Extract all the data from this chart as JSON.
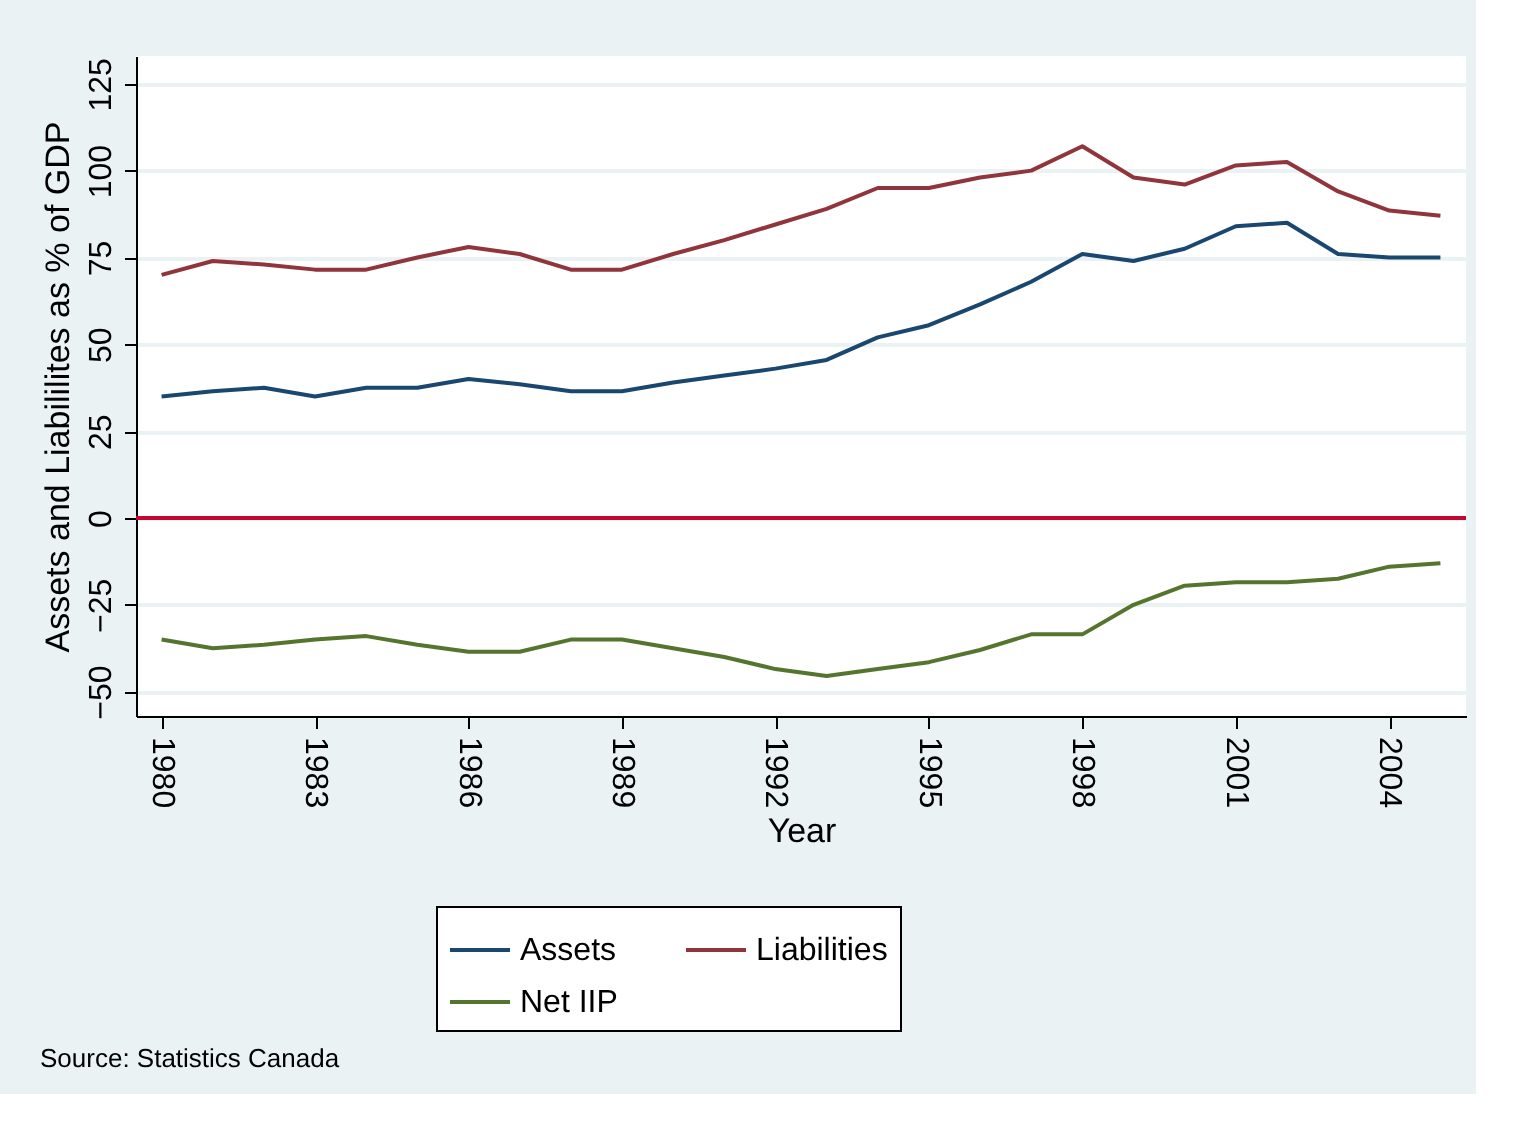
{
  "chart_data": {
    "type": "line",
    "xlabel": "Year",
    "ylabel": "Assets and Liabililites as % of GDP",
    "x": [
      1980,
      1981,
      1982,
      1983,
      1984,
      1985,
      1986,
      1987,
      1988,
      1989,
      1990,
      1991,
      1992,
      1993,
      1994,
      1995,
      1996,
      1997,
      1998,
      1999,
      2000,
      2001,
      2002,
      2003,
      2004,
      2005
    ],
    "series": [
      {
        "name": "Assets",
        "color": "#1a476f",
        "values": [
          35,
          36.5,
          37.5,
          35,
          37.5,
          37.5,
          40,
          38.5,
          36.5,
          36.5,
          39,
          41,
          43,
          45.5,
          52,
          55.5,
          61.5,
          68,
          76,
          74,
          77.5,
          84,
          85,
          76,
          75,
          75
        ]
      },
      {
        "name": "Liabilities",
        "color": "#90353b",
        "values": [
          70,
          74,
          73,
          71.5,
          71.5,
          75,
          78,
          76,
          71.5,
          71.5,
          76,
          80,
          84.5,
          89,
          95,
          95,
          98,
          100,
          107,
          98,
          96,
          101.5,
          102.5,
          94,
          88.5,
          87
        ]
      },
      {
        "name": "Net IIP",
        "color": "#55752f",
        "values": [
          -35,
          -37.5,
          -36.5,
          -35,
          -34,
          -36.5,
          -38.5,
          -38.5,
          -35,
          -35,
          -37.5,
          -40,
          -43.5,
          -45.5,
          -43.5,
          -41.5,
          -38,
          -33.5,
          -33.5,
          -25,
          -19.5,
          -18.5,
          -18.5,
          -17.5,
          -14,
          -13
        ]
      }
    ],
    "xlim": [
      1979.5,
      2005.5
    ],
    "xticks": [
      1980,
      1983,
      1986,
      1989,
      1992,
      1995,
      1998,
      2001,
      2004
    ],
    "ylim": [
      -57,
      133
    ],
    "yticks": [
      -50,
      -25,
      0,
      25,
      50,
      75,
      100,
      125
    ],
    "ref_lines": [
      {
        "axis": "y",
        "value": 0,
        "color": "#c10534"
      }
    ],
    "grid": "y",
    "legend": "bottom",
    "marker": "none",
    "line_style": "solid",
    "annotations": [
      "Source: Statistics Canada"
    ]
  }
}
